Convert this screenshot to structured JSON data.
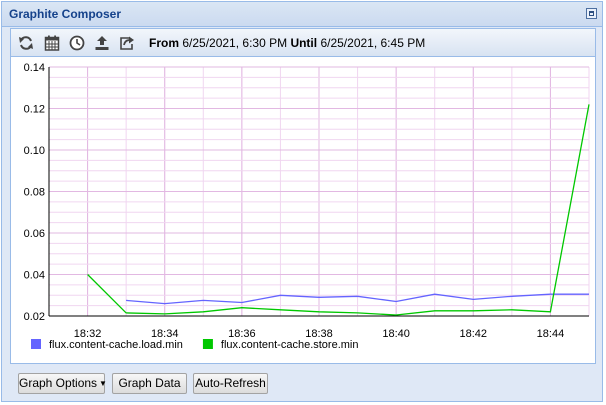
{
  "window": {
    "title": "Graphite Composer"
  },
  "toolbar": {
    "icons": [
      "refresh-icon",
      "calendar-icon",
      "clock-icon",
      "upload-icon",
      "share-icon"
    ],
    "from_label": "From",
    "from_value": "6/25/2021, 6:30 PM",
    "until_label": "Until",
    "until_value": "6/25/2021, 6:45 PM"
  },
  "chart_data": {
    "type": "line",
    "x_ticks": [
      "18:32",
      "18:34",
      "18:36",
      "18:38",
      "18:40",
      "18:42",
      "18:44"
    ],
    "y_ticks": [
      "0.02",
      "0.04",
      "0.06",
      "0.08",
      "0.10",
      "0.12",
      "0.14"
    ],
    "ylim": [
      0.02,
      0.14
    ],
    "xlim": [
      "18:31",
      "18:45"
    ],
    "grid": true,
    "legend_position": "bottom-left",
    "series": [
      {
        "name": "flux.content-cache.load.min",
        "color": "#6464ff",
        "x": [
          "18:33",
          "18:34",
          "18:35",
          "18:36",
          "18:37",
          "18:38",
          "18:39",
          "18:40",
          "18:41",
          "18:42",
          "18:43",
          "18:44",
          "18:45"
        ],
        "values": [
          0.0275,
          0.026,
          0.0275,
          0.0265,
          0.03,
          0.029,
          0.0295,
          0.027,
          0.0305,
          0.028,
          0.0295,
          0.0305,
          0.0305
        ]
      },
      {
        "name": "flux.content-cache.store.min",
        "color": "#00c800",
        "x": [
          "18:32",
          "18:33",
          "18:34",
          "18:35",
          "18:36",
          "18:37",
          "18:38",
          "18:39",
          "18:40",
          "18:41",
          "18:42",
          "18:43",
          "18:44",
          "18:45"
        ],
        "values": [
          0.04,
          0.0215,
          0.021,
          0.022,
          0.024,
          0.023,
          0.022,
          0.0215,
          0.0205,
          0.0225,
          0.0225,
          0.023,
          0.022,
          0.122
        ]
      }
    ]
  },
  "buttons": {
    "graph_options": "Graph Options",
    "graph_data": "Graph Data",
    "auto_refresh": "Auto-Refresh"
  }
}
